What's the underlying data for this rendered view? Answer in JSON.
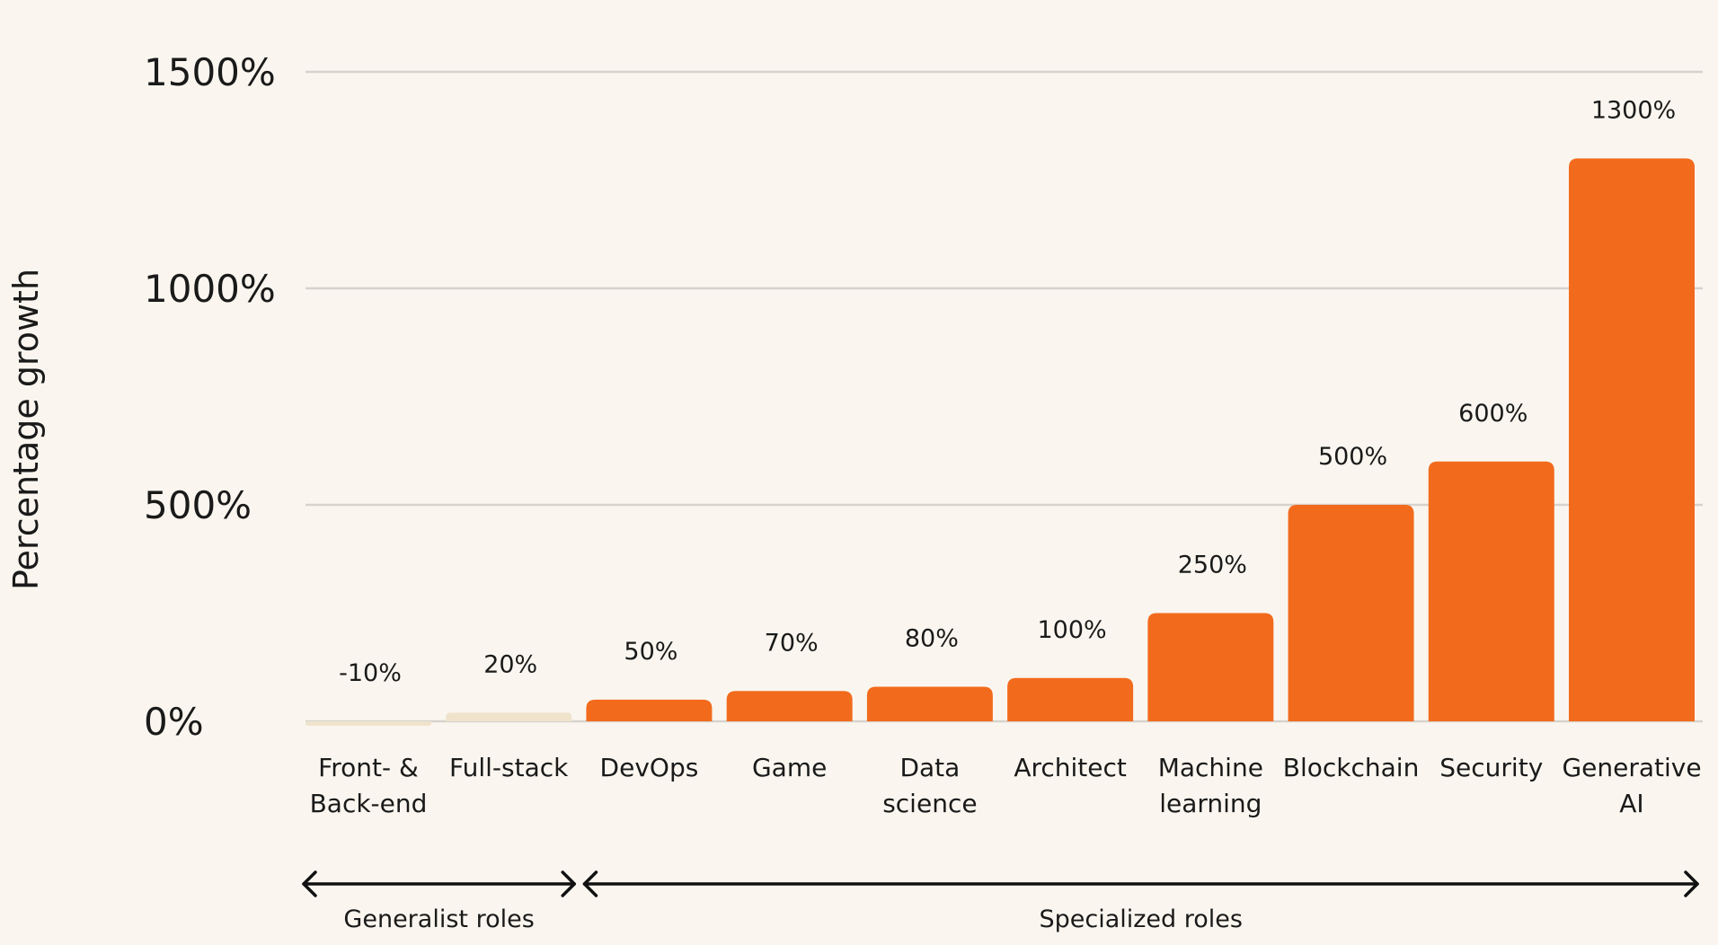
{
  "chart_data": {
    "type": "bar",
    "ylabel": "Percentage growth",
    "xlabel": "",
    "title": "",
    "ylim": [
      0,
      1500
    ],
    "yticks": [
      0,
      500,
      1000,
      1500
    ],
    "ytick_labels": [
      "0%",
      "500%",
      "1000%",
      "1500%"
    ],
    "grid": true,
    "categories": [
      [
        "Front- &",
        "Back-end"
      ],
      [
        "Full-stack"
      ],
      [
        "DevOps"
      ],
      [
        "Game"
      ],
      [
        "Data",
        "science"
      ],
      [
        "Architect"
      ],
      [
        "Machine",
        "learning"
      ],
      [
        "Blockchain"
      ],
      [
        "Security"
      ],
      [
        "Generative",
        "AI"
      ]
    ],
    "values": [
      -10,
      20,
      50,
      70,
      80,
      100,
      250,
      500,
      600,
      1300
    ],
    "data_labels": [
      "-10%",
      "20%",
      "50%",
      "70%",
      "80%",
      "100%",
      "250%",
      "500%",
      "600%",
      "1300%"
    ],
    "bar_colors": [
      "#efe3cc",
      "#efe3cc",
      "#f26b1d",
      "#f26b1d",
      "#f26b1d",
      "#f26b1d",
      "#f26b1d",
      "#f26b1d",
      "#f26b1d",
      "#f26b1d"
    ],
    "groups": [
      {
        "label": "Generalist roles",
        "start_index": 0,
        "end_index": 1
      },
      {
        "label": "Specialized roles",
        "start_index": 2,
        "end_index": 9
      }
    ]
  }
}
